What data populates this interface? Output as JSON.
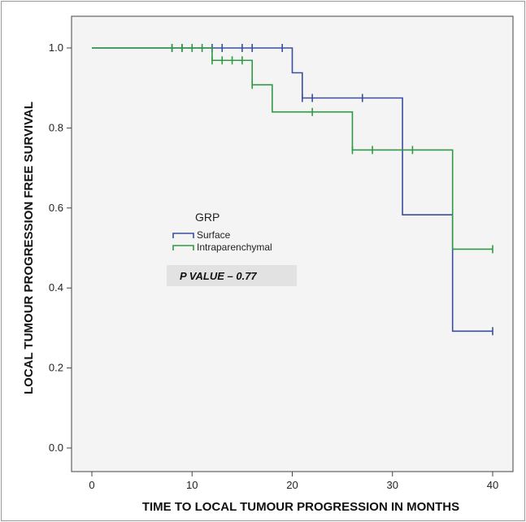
{
  "chart_data": {
    "type": "line",
    "title": "",
    "xlabel": "TIME TO LOCAL TUMOUR PROGRESSION IN MONTHS",
    "ylabel": "LOCAL TUMOUR PROGRESSION FREE SURVIVAL",
    "xlim": [
      0,
      40
    ],
    "ylim": [
      0,
      1.0
    ],
    "x_ticks": [
      0,
      10,
      20,
      30,
      40
    ],
    "y_ticks": [
      0.0,
      0.2,
      0.4,
      0.6,
      0.8,
      1.0
    ],
    "x_tick_labels": [
      "0",
      "10",
      "20",
      "30",
      "40"
    ],
    "y_tick_labels": [
      "0.0",
      "0.2",
      "0.4",
      "0.6",
      "0.8",
      "1.0"
    ],
    "grid": false,
    "legend": {
      "title": "GRP",
      "placement": "center-left",
      "entries": [
        "Surface",
        "Intraparenchymal"
      ]
    },
    "annotation": "P VALUE – 0.77",
    "series": [
      {
        "name": "Surface",
        "color": "#3a4fa0",
        "steps": [
          [
            0,
            1.0
          ],
          [
            20,
            0.938
          ],
          [
            21,
            0.875
          ],
          [
            31,
            0.583
          ],
          [
            36,
            0.292
          ],
          [
            40,
            0.292
          ]
        ],
        "censored": [
          [
            8,
            1.0
          ],
          [
            9,
            1.0
          ],
          [
            12,
            1.0
          ],
          [
            13,
            1.0
          ],
          [
            15,
            1.0
          ],
          [
            16,
            1.0
          ],
          [
            19,
            1.0
          ],
          [
            21,
            0.875
          ],
          [
            22,
            0.875
          ],
          [
            27,
            0.875
          ],
          [
            40,
            0.292
          ]
        ]
      },
      {
        "name": "Intraparenchymal",
        "color": "#2f9a44",
        "steps": [
          [
            0,
            1.0
          ],
          [
            12,
            0.969
          ],
          [
            16,
            0.908
          ],
          [
            18,
            0.84
          ],
          [
            26,
            0.745
          ],
          [
            36,
            0.497
          ],
          [
            40,
            0.497
          ]
        ],
        "censored": [
          [
            8,
            1.0
          ],
          [
            9,
            1.0
          ],
          [
            10,
            1.0
          ],
          [
            11,
            1.0
          ],
          [
            12,
            0.969
          ],
          [
            13,
            0.969
          ],
          [
            14,
            0.969
          ],
          [
            15,
            0.969
          ],
          [
            16,
            0.908
          ],
          [
            22,
            0.84
          ],
          [
            26,
            0.745
          ],
          [
            28,
            0.745
          ],
          [
            32,
            0.745
          ],
          [
            40,
            0.497
          ]
        ]
      }
    ]
  }
}
